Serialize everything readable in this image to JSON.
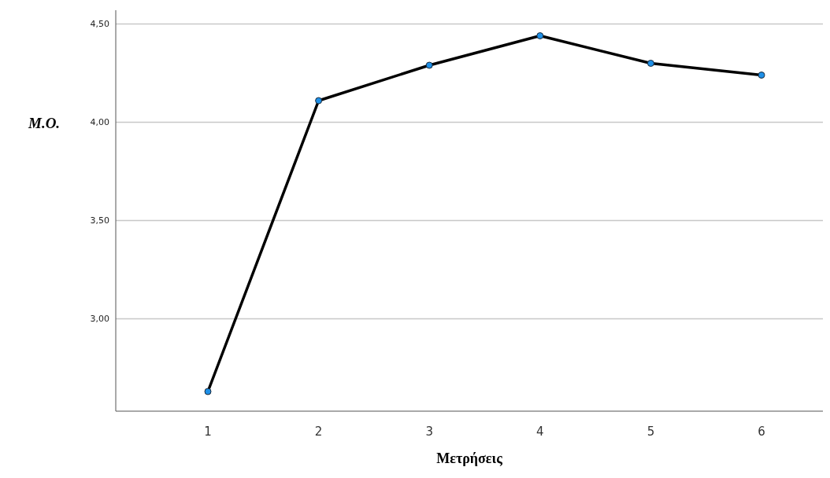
{
  "chart_data": {
    "type": "line",
    "xlabel": "Μετρήσεις",
    "ylabel": "Μ.Ο.",
    "categories": [
      "1",
      "2",
      "3",
      "4",
      "5",
      "6"
    ],
    "series": [
      {
        "color": "#000000",
        "values": [
          2.63,
          4.11,
          4.29,
          4.44,
          4.3,
          4.24
        ]
      }
    ],
    "ylim": [
      2.53,
      4.57
    ],
    "yticks": [
      {
        "value": 3,
        "label": "3,00"
      },
      {
        "value": 3.5,
        "label": "3,50"
      },
      {
        "value": 4,
        "label": "4,00"
      },
      {
        "value": 4.5,
        "label": "4,50"
      }
    ],
    "grid": "y",
    "marker": "circle",
    "line_style": "solid",
    "legend": false
  }
}
